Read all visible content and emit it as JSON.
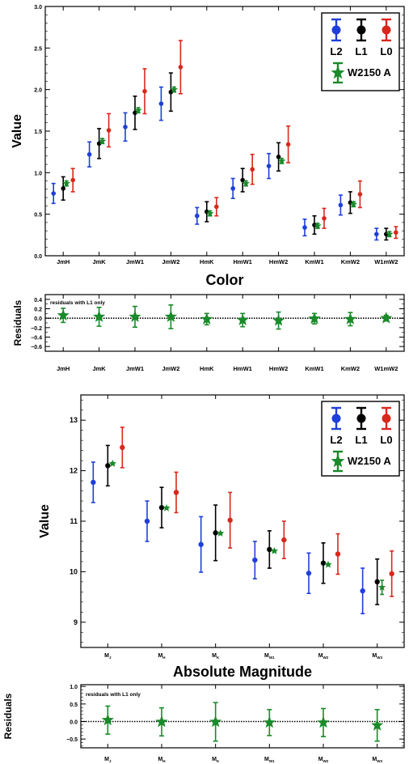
{
  "colors": {
    "L2": "#1f3fd8",
    "L1": "#000000",
    "L0": "#d8281c",
    "W2150 A": "#1a8a2a"
  },
  "chart_data": [
    {
      "type": "scatter",
      "ylabel": "Value",
      "xlabel": "Color",
      "ylim": [
        0,
        3.0
      ],
      "yticks": [
        "0.0",
        "0.5",
        "1.0",
        "1.5",
        "2.0",
        "2.5",
        "3.0"
      ],
      "categories": [
        "JmH",
        "JmK",
        "JmW1",
        "JmW2",
        "HmK",
        "HmW1",
        "HmW2",
        "KmW1",
        "KmW2",
        "W1mW2"
      ],
      "legend": "top-right",
      "series": [
        {
          "name": "L2",
          "values": [
            0.75,
            1.22,
            1.55,
            1.83,
            0.48,
            0.81,
            1.08,
            0.34,
            0.61,
            0.26
          ],
          "errors": [
            0.12,
            0.15,
            0.17,
            0.2,
            0.1,
            0.12,
            0.15,
            0.1,
            0.12,
            0.07
          ]
        },
        {
          "name": "L1",
          "values": [
            0.81,
            1.35,
            1.72,
            1.97,
            0.53,
            0.91,
            1.19,
            0.37,
            0.64,
            0.26
          ],
          "errors": [
            0.14,
            0.18,
            0.2,
            0.23,
            0.12,
            0.14,
            0.17,
            0.11,
            0.13,
            0.07
          ]
        },
        {
          "name": "L0",
          "values": [
            0.91,
            1.51,
            1.98,
            2.27,
            0.59,
            1.04,
            1.34,
            0.45,
            0.74,
            0.28
          ],
          "errors": [
            0.14,
            0.2,
            0.27,
            0.32,
            0.11,
            0.18,
            0.22,
            0.12,
            0.16,
            0.07
          ]
        },
        {
          "name": "W2150 A",
          "values": [
            0.87,
            1.38,
            1.75,
            2.0,
            0.51,
            0.87,
            1.14,
            0.36,
            0.62,
            0.26
          ],
          "errors": [
            0.03,
            0.03,
            0.03,
            0.03,
            0.03,
            0.03,
            0.03,
            0.03,
            0.03,
            0.03
          ]
        }
      ]
    },
    {
      "type": "scatter",
      "ylabel": "Residuals",
      "annotation": "residuals with L1 only",
      "ylim": [
        -0.7,
        0.5
      ],
      "yticks": [
        "0.4",
        "0.2",
        "0.0",
        "−0.2",
        "−0.4",
        "−0.6"
      ],
      "categories": [
        "JmH",
        "JmK",
        "JmW1",
        "JmW2",
        "HmK",
        "HmW1",
        "HmW2",
        "KmW1",
        "KmW2",
        "W1mW2"
      ],
      "series": [
        {
          "name": "W2150 A",
          "values": [
            0.06,
            0.03,
            0.03,
            0.03,
            -0.02,
            -0.04,
            -0.05,
            -0.01,
            -0.02,
            0.0
          ],
          "errors": [
            0.15,
            0.2,
            0.22,
            0.25,
            0.12,
            0.14,
            0.18,
            0.11,
            0.14,
            0.06
          ]
        }
      ]
    },
    {
      "type": "scatter",
      "ylabel": "Value",
      "xlabel": "Absolute Magnitude",
      "ylim": [
        8.5,
        13.5
      ],
      "yticks": [
        "9",
        "10",
        "11",
        "12",
        "13"
      ],
      "categories": [
        {
          "main": "M",
          "sub": "J"
        },
        {
          "main": "M",
          "sub": "H"
        },
        {
          "main": "M",
          "sub": "K"
        },
        {
          "main": "M",
          "sub": "W1"
        },
        {
          "main": "M",
          "sub": "W2"
        },
        {
          "main": "M",
          "sub": "W3"
        }
      ],
      "legend": "top-right",
      "series": [
        {
          "name": "L2",
          "values": [
            11.77,
            11.0,
            10.54,
            10.23,
            9.97,
            9.62
          ],
          "errors": [
            0.4,
            0.4,
            0.55,
            0.37,
            0.4,
            0.45
          ]
        },
        {
          "name": "L1",
          "values": [
            12.1,
            11.27,
            10.77,
            10.44,
            10.17,
            9.8
          ],
          "errors": [
            0.4,
            0.4,
            0.55,
            0.37,
            0.4,
            0.45
          ]
        },
        {
          "name": "L0",
          "values": [
            12.46,
            11.57,
            11.02,
            10.63,
            10.35,
            9.96
          ],
          "errors": [
            0.4,
            0.4,
            0.55,
            0.37,
            0.4,
            0.45
          ]
        },
        {
          "name": "W2150 A",
          "values": [
            12.14,
            11.26,
            10.76,
            10.41,
            10.14,
            9.69
          ],
          "errors": [
            0.02,
            0.02,
            0.02,
            0.02,
            0.02,
            0.14
          ]
        }
      ]
    },
    {
      "type": "scatter",
      "ylabel": "Residuals",
      "annotation": "residuals with L1 only",
      "ylim": [
        -0.75,
        1.05
      ],
      "yticks": [
        "1.0",
        "0.5",
        "0.0",
        "−0.5"
      ],
      "categories": [
        {
          "main": "M",
          "sub": "J"
        },
        {
          "main": "M",
          "sub": "H"
        },
        {
          "main": "M",
          "sub": "K"
        },
        {
          "main": "M",
          "sub": "W1"
        },
        {
          "main": "M",
          "sub": "W2"
        },
        {
          "main": "M",
          "sub": "W3"
        }
      ],
      "series": [
        {
          "name": "W2150 A",
          "values": [
            0.04,
            -0.01,
            -0.01,
            -0.03,
            -0.03,
            -0.11
          ],
          "errors": [
            0.4,
            0.4,
            0.55,
            0.37,
            0.4,
            0.45
          ]
        }
      ]
    }
  ]
}
